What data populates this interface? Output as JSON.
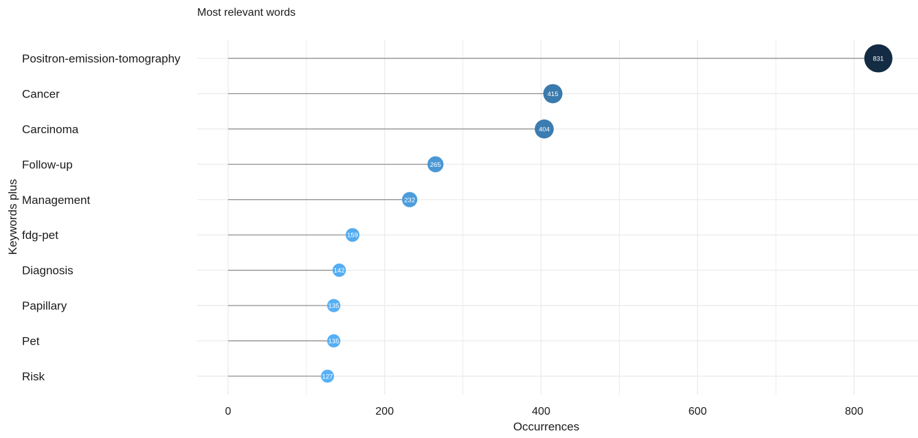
{
  "chart_data": {
    "type": "lollipop",
    "title": "Most relevant words",
    "xlabel": "Occurrences",
    "ylabel": "Keywords plus",
    "xlim": [
      -48,
      890
    ],
    "x_ticks": [
      0,
      200,
      400,
      600,
      800
    ],
    "grid": true,
    "categories": [
      "Positron-emission-tomography",
      "Cancer",
      "Carcinoma",
      "Follow-up",
      "Management",
      "fdg-pet",
      "Diagnosis",
      "Papillary",
      "Pet",
      "Risk"
    ],
    "values": [
      831,
      415,
      404,
      265,
      232,
      159,
      142,
      135,
      135,
      127
    ],
    "data_labels": [
      "831",
      "415",
      "404",
      "265",
      "232",
      "159",
      "142",
      "135",
      "135",
      "127"
    ],
    "colors": {
      "point_low": "#56B1F7",
      "point_high": "#132B43",
      "stem": "#888888",
      "grid": "#ebebeb",
      "text": "#1a1a1a"
    }
  }
}
